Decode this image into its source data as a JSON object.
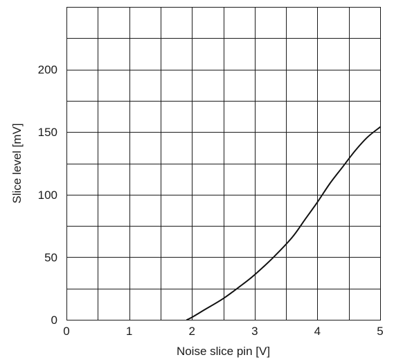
{
  "chart_data": {
    "type": "line",
    "title": "",
    "xlabel": "Noise slice pin [V]",
    "ylabel": "Slice level [mV]",
    "xlim": [
      0,
      5
    ],
    "ylim": [
      0,
      250
    ],
    "x_ticks": [
      0,
      1,
      2,
      3,
      4,
      5
    ],
    "x_tick_labels": [
      "0",
      "1",
      "2",
      "3",
      "4",
      "5"
    ],
    "y_ticks": [
      0,
      50,
      100,
      150,
      200
    ],
    "y_tick_labels": [
      "0",
      "50",
      "100",
      "150",
      "200"
    ],
    "x_minor_step": 0.5,
    "y_minor_step": 25,
    "grid": true,
    "series": [
      {
        "x": [
          1.92,
          2.0,
          2.2,
          2.5,
          2.8,
          3.0,
          3.3,
          3.6,
          3.8,
          4.0,
          4.2,
          4.4,
          4.6,
          4.8,
          5.0
        ],
        "y": [
          0,
          2,
          8,
          17,
          28,
          36,
          50,
          66,
          80,
          94,
          109,
          122,
          135,
          146,
          154
        ]
      }
    ],
    "colors": {
      "line": "#111111",
      "grid": "#1a1a1a",
      "background": "#ffffff"
    }
  }
}
